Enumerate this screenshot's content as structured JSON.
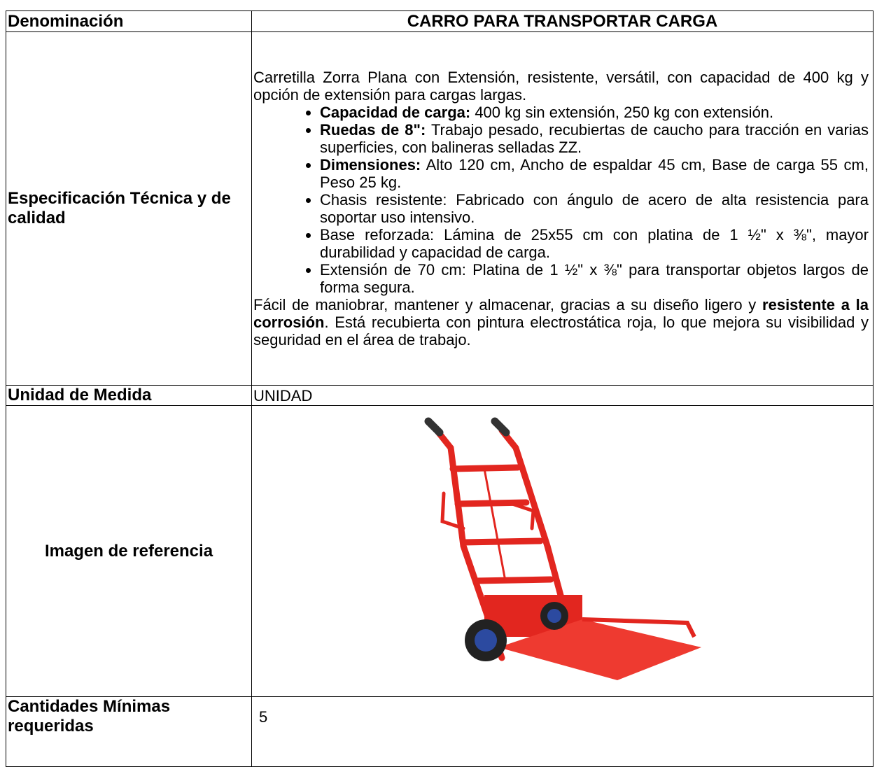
{
  "table": {
    "rows": [
      {
        "label": "Denominación",
        "value": "CARRO PARA TRANSPORTAR CARGA"
      },
      {
        "label": "Especificación Técnica y de calidad",
        "intro": "Carretilla Zorra Plana con Extensión, resistente, versátil, con capacidad de 400 kg y opción de extensión para cargas largas.",
        "bullets": [
          {
            "bold": "Capacidad de carga:",
            "text": "400 kg sin extensión, 250 kg con extensión."
          },
          {
            "bold": "Ruedas de 8\":",
            "text": "Trabajo pesado, recubiertas de caucho para tracción en varias superficies, con balineras selladas ZZ."
          },
          {
            "bold": "Dimensiones:",
            "text": "Alto 120 cm, Ancho de espaldar 45 cm, Base de carga 55 cm, Peso 25 kg."
          },
          {
            "text": "Chasis resistente: Fabricado con ángulo de acero de alta resistencia para soportar uso intensivo."
          },
          {
            "text": "Base reforzada: Lámina de 25x55 cm con platina de 1 ½\" x ⅜\", mayor durabilidad y capacidad de carga."
          },
          {
            "text": "Extensión de 70 cm: Platina de 1 ½\" x ⅜\" para transportar objetos largos de forma segura."
          }
        ],
        "closing": [
          "Fácil de maniobrar, mantener y almacenar, gracias a su diseño ligero y",
          "resistente a la corrosión",
          ". Está recubierta con pintura electrostática roja, lo que mejora su visibilidad y seguridad en el área de trabajo."
        ]
      },
      {
        "label": "Unidad de Medida",
        "value": "UNIDAD"
      },
      {
        "label": "Imagen de referencia"
      },
      {
        "label": "Cantidades Mínimas requeridas",
        "value": "5"
      }
    ]
  }
}
